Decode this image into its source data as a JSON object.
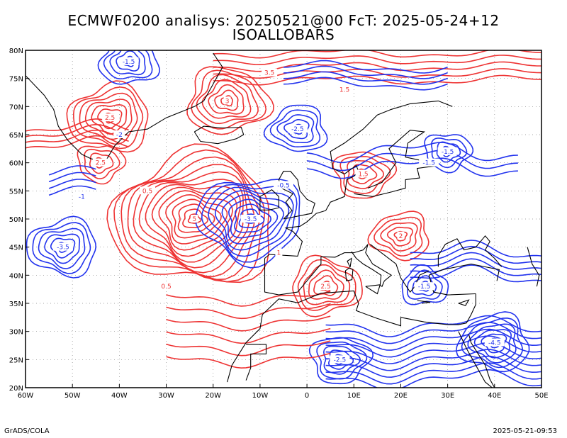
{
  "title": {
    "line1": "ECMWF0200 analisys: 20250521@00 FcT: 2025-05-24+12",
    "line2": "ISOALLOBARS"
  },
  "map": {
    "lon_range": [
      -60,
      50
    ],
    "lat_range": [
      20,
      80
    ],
    "lon_ticks": [
      "60W",
      "50W",
      "40W",
      "30W",
      "20W",
      "10W",
      "0",
      "10E",
      "20E",
      "30E",
      "40E",
      "50E"
    ],
    "lat_ticks": [
      "20N",
      "25N",
      "30N",
      "35N",
      "40N",
      "45N",
      "50N",
      "55N",
      "60N",
      "65N",
      "70N",
      "75N",
      "80N"
    ],
    "grid": "dotted",
    "colors": {
      "positive": "#ee3333",
      "negative": "#2233ee",
      "coast": "#000000"
    }
  },
  "contours": {
    "positive_centers": [
      {
        "lon": -24,
        "lat": 50,
        "label": "5",
        "rings": 14
      },
      {
        "lon": -42,
        "lat": 68,
        "label": "2.5",
        "rings": 7
      },
      {
        "lon": -17,
        "lat": 71,
        "label": "3",
        "rings": 7
      },
      {
        "lon": 12,
        "lat": 58,
        "label": "1.5",
        "rings": 5
      },
      {
        "lon": 20,
        "lat": 47,
        "label": "2",
        "rings": 5
      },
      {
        "lon": 4,
        "lat": 38,
        "label": "2.5",
        "rings": 6
      },
      {
        "lon": -44,
        "lat": 60,
        "label": "2.5",
        "rings": 4
      }
    ],
    "negative_centers": [
      {
        "lon": -12,
        "lat": 50,
        "label": "-3.5",
        "rings": 9
      },
      {
        "lon": -52,
        "lat": 45,
        "label": "-3.5",
        "rings": 6
      },
      {
        "lon": -38,
        "lat": 78,
        "label": "-1.5",
        "rings": 5
      },
      {
        "lon": 7,
        "lat": 25,
        "label": "-2.5",
        "rings": 5
      },
      {
        "lon": 40,
        "lat": 28,
        "label": "-4.5",
        "rings": 6
      },
      {
        "lon": 25,
        "lat": 38,
        "label": "-1.5",
        "rings": 4
      },
      {
        "lon": 30,
        "lat": 62,
        "label": "-1.5",
        "rings": 4
      },
      {
        "lon": -2,
        "lat": 66,
        "label": "-2.5",
        "rings": 5
      }
    ],
    "band_labels": [
      "3.5",
      "1.5",
      "0.5",
      "-0.5",
      "-1",
      "-2",
      "1",
      "-1.5",
      "0.5"
    ]
  },
  "footer": {
    "credit": "GrADS/COLA",
    "timestamp": "2025-05-21-09:53"
  }
}
